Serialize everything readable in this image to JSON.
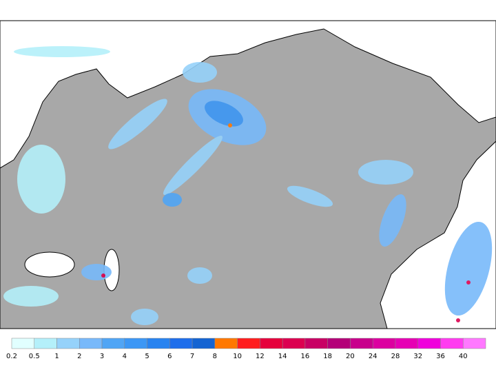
{
  "colorbar": {
    "labels": [
      "0.2",
      "0.5",
      "1",
      "2",
      "3",
      "4",
      "5",
      "6",
      "7",
      "8",
      "10",
      "12",
      "14",
      "16",
      "18",
      "20",
      "24",
      "28",
      "32",
      "36",
      "40"
    ],
    "colors": [
      "#e1ffff",
      "#b4f0fa",
      "#96d2fa",
      "#78b9fa",
      "#50a5f5",
      "#3c97f5",
      "#2883f0",
      "#1e6eeb",
      "#1464d2",
      "#ff7800",
      "#ff1e1e",
      "#e6003c",
      "#dc0050",
      "#c80064",
      "#b40078",
      "#c8008c",
      "#dc00a0",
      "#e600b4",
      "#f000dc",
      "#ff3cf0",
      "#ff78ff"
    ]
  }
}
